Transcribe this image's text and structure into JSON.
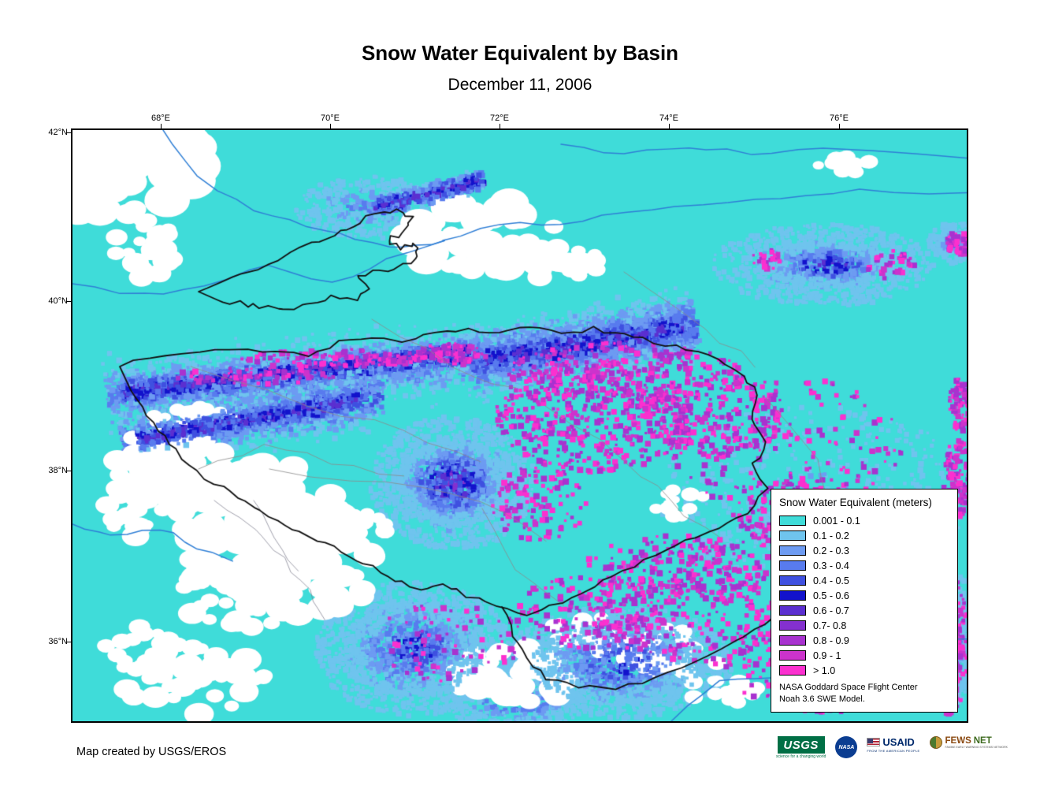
{
  "title": "Snow Water Equivalent by Basin",
  "subtitle": "December 11, 2006",
  "map": {
    "x_tick_labels": [
      "68°E",
      "70°E",
      "72°E",
      "74°E",
      "76°E"
    ],
    "y_tick_labels": [
      "42°N",
      "40°N",
      "38°N",
      "36°N"
    ],
    "background_color": "#3FDCD9",
    "river_color": "#2F7FD6",
    "basin_outline_color": "#101010",
    "subbasin_line_color": "#8A8A8A",
    "nodata_color": "#FFFFFF"
  },
  "legend": {
    "title": "Snow Water Equivalent (meters)",
    "items": [
      {
        "label": "0.001 - 0.1",
        "color": "#3FDCD9"
      },
      {
        "label": "0.1 - 0.2",
        "color": "#6FC4EE"
      },
      {
        "label": "0.2 - 0.3",
        "color": "#6D9BF2"
      },
      {
        "label": "0.3 - 0.4",
        "color": "#587BEE"
      },
      {
        "label": "0.4 - 0.5",
        "color": "#3F50E0"
      },
      {
        "label": "0.5 - 0.6",
        "color": "#1212CC"
      },
      {
        "label": "0.6 - 0.7",
        "color": "#5B2FD0"
      },
      {
        "label": "0.7- 0.8",
        "color": "#8430CF"
      },
      {
        "label": "0.8 - 0.9",
        "color": "#A832CF"
      },
      {
        "label": "0.9 - 1",
        "color": "#CC33CC"
      },
      {
        "label": "> 1.0",
        "color": "#FB30CF"
      }
    ],
    "source_line1": "NASA Goddard Space Flight Center",
    "source_line2": "Noah 3.6 SWE Model."
  },
  "footer": {
    "credit": "Map created by USGS/EROS"
  },
  "logos": {
    "usgs": {
      "text": "USGS",
      "tagline": "science for a changing world"
    },
    "nasa": {
      "text": "NASA"
    },
    "usaid": {
      "text": "USAID",
      "tagline": "FROM THE AMERICAN PEOPLE"
    },
    "fewsnet": {
      "text_1": "FEWS",
      "text_2": "NET",
      "tagline": "FAMINE EARLY WARNING SYSTEMS NETWORK"
    }
  }
}
